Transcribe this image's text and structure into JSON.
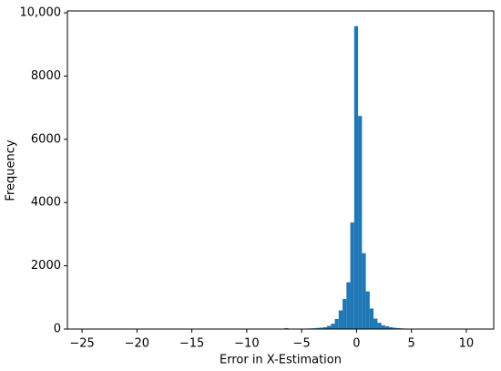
{
  "chart_data": {
    "type": "histogram",
    "xlabel": "Error in X-Estimation",
    "ylabel": "Frequency",
    "color": "#1f77b4",
    "bins": [
      -24.57,
      -24.217,
      -23.864,
      -23.511,
      -23.158,
      -22.805,
      -22.452,
      -22.099,
      -21.746,
      -21.393,
      -21.04,
      -20.687,
      -20.334,
      -19.981,
      -19.628,
      -19.275,
      -18.922,
      -18.569,
      -18.216,
      -17.863,
      -17.51,
      -17.157,
      -16.804,
      -16.451,
      -16.098,
      -15.745,
      -15.392,
      -15.039,
      -14.686,
      -14.333,
      -13.98,
      -13.627,
      -13.274,
      -12.921,
      -12.568,
      -12.215,
      -11.862,
      -11.509,
      -11.156,
      -10.803,
      -10.45,
      -10.097,
      -9.744,
      -9.391,
      -9.038,
      -8.685,
      -8.332,
      -7.979,
      -7.626,
      -7.273,
      -6.92,
      -6.567,
      -6.214,
      -5.861,
      -5.508,
      -5.155,
      -4.802,
      -4.449,
      -4.096,
      -3.743,
      -3.39,
      -3.037,
      -2.684,
      -2.331,
      -1.978,
      -1.625,
      -1.272,
      -0.919,
      -0.566,
      -0.213,
      0.14,
      0.493,
      0.846,
      1.199,
      1.552,
      1.905,
      2.258,
      2.611,
      2.964,
      3.317,
      3.67,
      4.023,
      4.376,
      4.729,
      5.082,
      5.435,
      5.788,
      6.141,
      6.494,
      6.847,
      7.2,
      7.553,
      7.906,
      8.259,
      8.612,
      8.965,
      9.318,
      9.671,
      10.024,
      10.377,
      10.73
    ],
    "counts": [
      1,
      0,
      0,
      0,
      0,
      0,
      0,
      0,
      0,
      0,
      0,
      0,
      0,
      0,
      0,
      0,
      0,
      0,
      0,
      0,
      0,
      0,
      0,
      0,
      0,
      0,
      0,
      0,
      0,
      0,
      0,
      0,
      0,
      0,
      0,
      0,
      0,
      0,
      0,
      0,
      0,
      0,
      0,
      0,
      0,
      0,
      0,
      0,
      0,
      0,
      0,
      30,
      0,
      3,
      8,
      12,
      15,
      20,
      25,
      35,
      45,
      60,
      100,
      170,
      320,
      590,
      950,
      1480,
      3370,
      9580,
      6740,
      2400,
      1190,
      650,
      330,
      200,
      120,
      90,
      60,
      40,
      30,
      20,
      15,
      10,
      8,
      5,
      3,
      0,
      0,
      0,
      0,
      0,
      0,
      0,
      0,
      0,
      0,
      0,
      0,
      1
    ],
    "xlim": [
      -26.335,
      12.495
    ],
    "xticks": [
      {
        "value": -25,
        "label": "−25"
      },
      {
        "value": -20,
        "label": "−20"
      },
      {
        "value": -15,
        "label": "−15"
      },
      {
        "value": -10,
        "label": "−10"
      },
      {
        "value": -5,
        "label": "−5"
      },
      0,
      5,
      10
    ],
    "ylim": [
      0,
      10059
    ],
    "yticks": [
      0,
      2000,
      4000,
      6000,
      8000,
      {
        "value": 10000,
        "label": "10,000"
      }
    ]
  }
}
